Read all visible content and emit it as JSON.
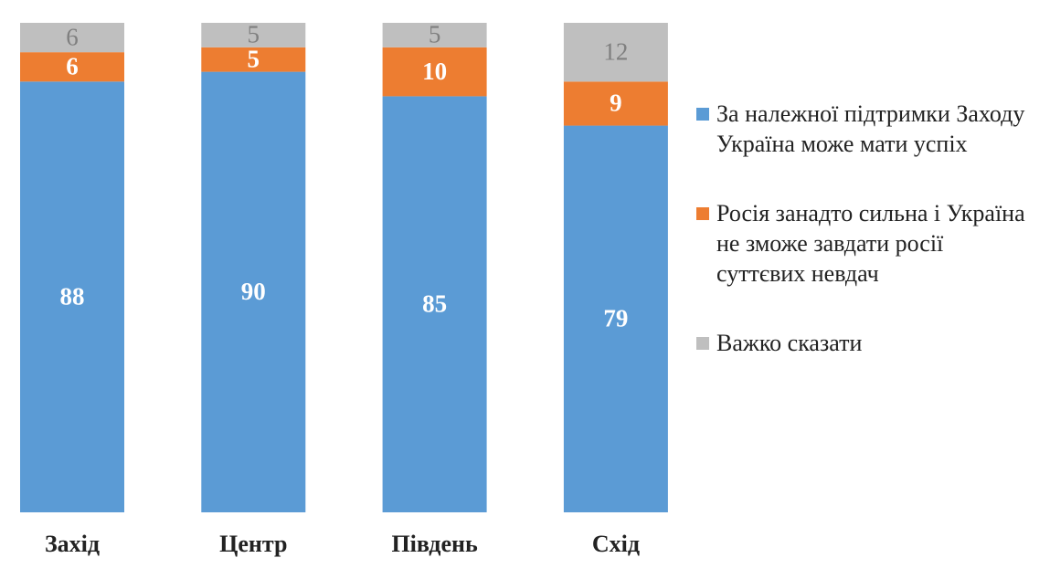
{
  "chart_data": {
    "type": "stacked-bar",
    "categories": [
      "Захід",
      "Центр",
      "Південь",
      "Схід"
    ],
    "series": [
      {
        "name": "За належної підтримки Заходу Україна може мати успіх",
        "color": "#5b9bd5",
        "values": [
          88,
          90,
          85,
          79
        ]
      },
      {
        "name": "Росія занадто сильна і Україна не зможе завдати росії суттєвих невдач",
        "color": "#ed7d31",
        "values": [
          6,
          5,
          10,
          9
        ]
      },
      {
        "name": "Важко сказати",
        "color": "#bfbfbf",
        "values": [
          6,
          5,
          5,
          12
        ]
      }
    ],
    "ylim": [
      0,
      100
    ]
  }
}
